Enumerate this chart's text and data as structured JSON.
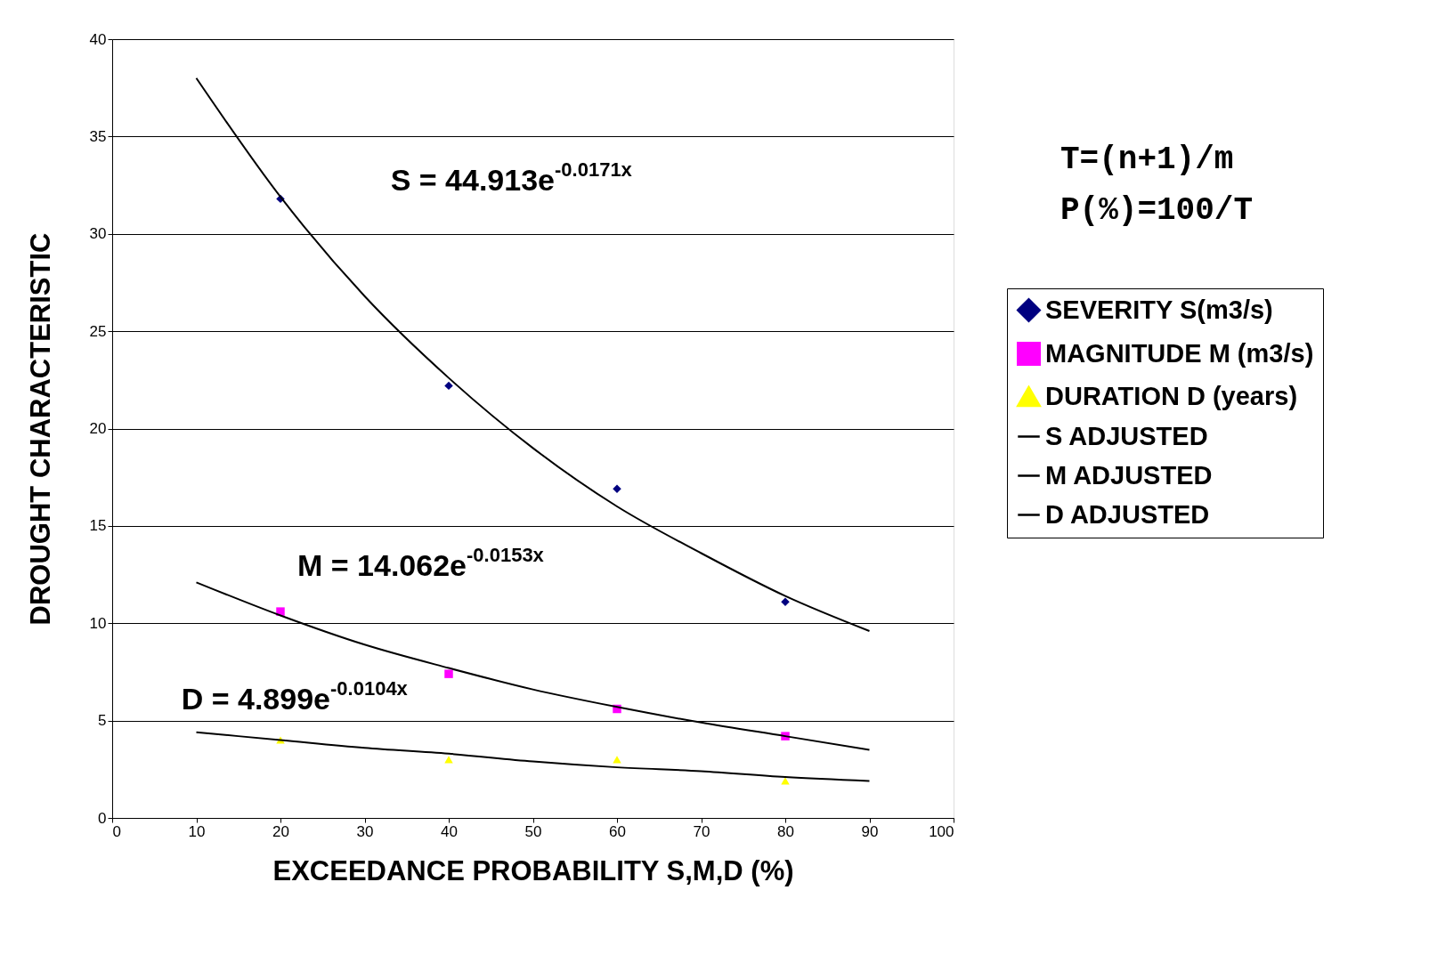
{
  "chart_data": {
    "type": "scatter",
    "xlabel": "EXCEEDANCE PROBABILITY S,M,D (%)",
    "ylabel": "DROUGHT CHARACTERISTIC",
    "xlim": [
      0,
      100
    ],
    "xticks": [
      0,
      10,
      20,
      30,
      40,
      50,
      60,
      70,
      80,
      90,
      100
    ],
    "ylim": [
      0,
      40
    ],
    "yticks": [
      0,
      5,
      10,
      15,
      20,
      25,
      30,
      35,
      40
    ],
    "grid": "y",
    "legend": "right",
    "series": [
      {
        "name": "SEVERITY  S(m3/s)",
        "marker": "diamond",
        "color": "#000080",
        "x": [
          20,
          40,
          60,
          80
        ],
        "values": [
          31.8,
          22.2,
          16.9,
          11.1
        ]
      },
      {
        "name": "MAGNITUDE M (m3/s)",
        "marker": "square",
        "color": "#ff00ff",
        "x": [
          20,
          40,
          60,
          80
        ],
        "values": [
          10.6,
          7.4,
          5.6,
          4.2
        ]
      },
      {
        "name": "DURATION D (years)",
        "marker": "triangle",
        "color": "#ffff00",
        "x": [
          20,
          40,
          60,
          80
        ],
        "values": [
          4.0,
          3.0,
          3.0,
          1.9
        ]
      },
      {
        "name": "S ADJUSTED",
        "type": "line",
        "marker": "none",
        "color": "#000000",
        "x": [
          10,
          20,
          30,
          40,
          50,
          60,
          70,
          80,
          90
        ],
        "values": [
          38.0,
          31.9,
          26.8,
          22.6,
          19.0,
          16.0,
          13.6,
          11.4,
          9.6
        ]
      },
      {
        "name": "M ADJUSTED",
        "type": "line",
        "marker": "none",
        "color": "#000000",
        "x": [
          10,
          20,
          30,
          40,
          50,
          60,
          70,
          80,
          90
        ],
        "values": [
          12.1,
          10.4,
          8.9,
          7.7,
          6.6,
          5.7,
          4.9,
          4.2,
          3.5
        ]
      },
      {
        "name": "D ADJUSTED",
        "type": "line",
        "marker": "none",
        "color": "#000000",
        "x": [
          10,
          20,
          30,
          40,
          50,
          60,
          70,
          80,
          90
        ],
        "values": [
          4.4,
          4.0,
          3.6,
          3.3,
          2.9,
          2.6,
          2.4,
          2.1,
          1.9
        ]
      }
    ],
    "annotations": [
      "S = 44.913e$^{-0.0171x}$",
      "M = 14.062e$^{-0.0153x}$",
      "D = 4.899e$^{-0.0104x}$",
      "T=(n+1)/m",
      "P(%)=100/T"
    ]
  }
}
